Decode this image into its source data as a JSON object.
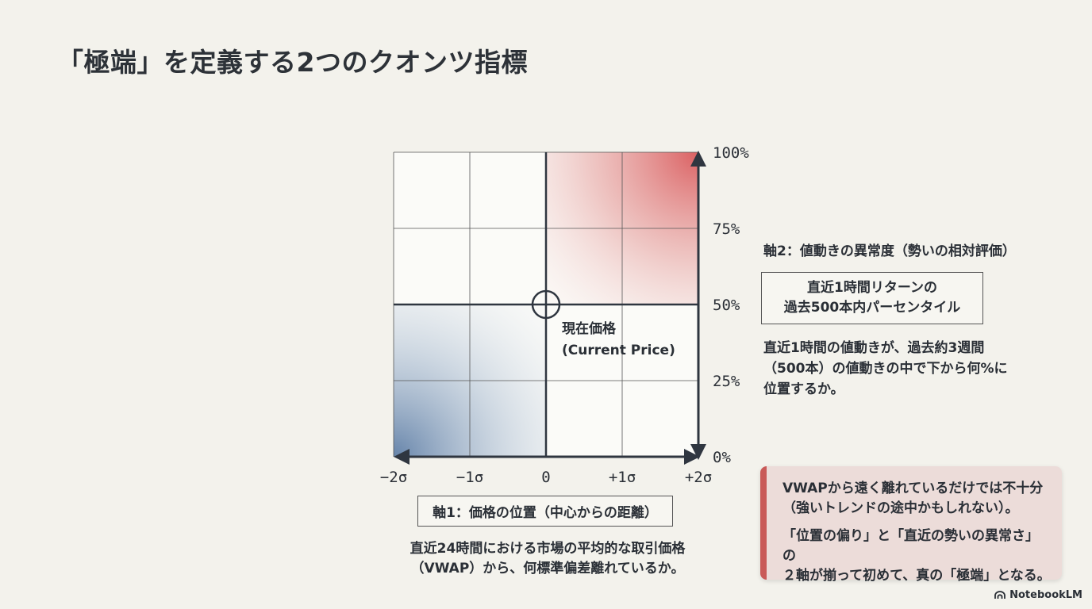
{
  "title": "「極端」を定義する2つのクオンツ指標",
  "chart_data": {
    "type": "quadrant-grid",
    "x_tick_labels": [
      "−2σ",
      "−1σ",
      "0",
      "+1σ",
      "+2σ"
    ],
    "y_tick_labels": [
      "0%",
      "25%",
      "50%",
      "75%",
      "100%"
    ],
    "highlight_colors": {
      "upper_right": "#d9585a",
      "lower_left": "#5e7ea6"
    },
    "grid": true
  },
  "center_label": {
    "line1": "現在価格",
    "line2": "(Current Price)"
  },
  "axis1": {
    "title": "軸1：価格の位置（中心からの距離）",
    "desc_line1": "直近24時間における市場の平均的な取引価格",
    "desc_line2": "（VWAP）から、何標準偏差離れているか。"
  },
  "axis2": {
    "title": "軸2：値動きの異常度（勢いの相対評価）",
    "box_line1": "直近1時間リターンの",
    "box_line2": "過去500本内パーセンタイル",
    "desc_line1": "直近1時間の値動きが、過去約3週間",
    "desc_line2": "（500本）の値動きの中で下から何%に",
    "desc_line3": "位置するか。"
  },
  "callout": {
    "line1": "VWAPから遠く離れているだけでは不十分",
    "line2": "（強いトレンドの途中かもしれない）。",
    "line3": "「位置の偏り」と「直近の勢いの異常さ」の",
    "line4": "２軸が揃って初めて、真の「極端」となる。"
  },
  "brand": {
    "name": "NotebookLM"
  }
}
